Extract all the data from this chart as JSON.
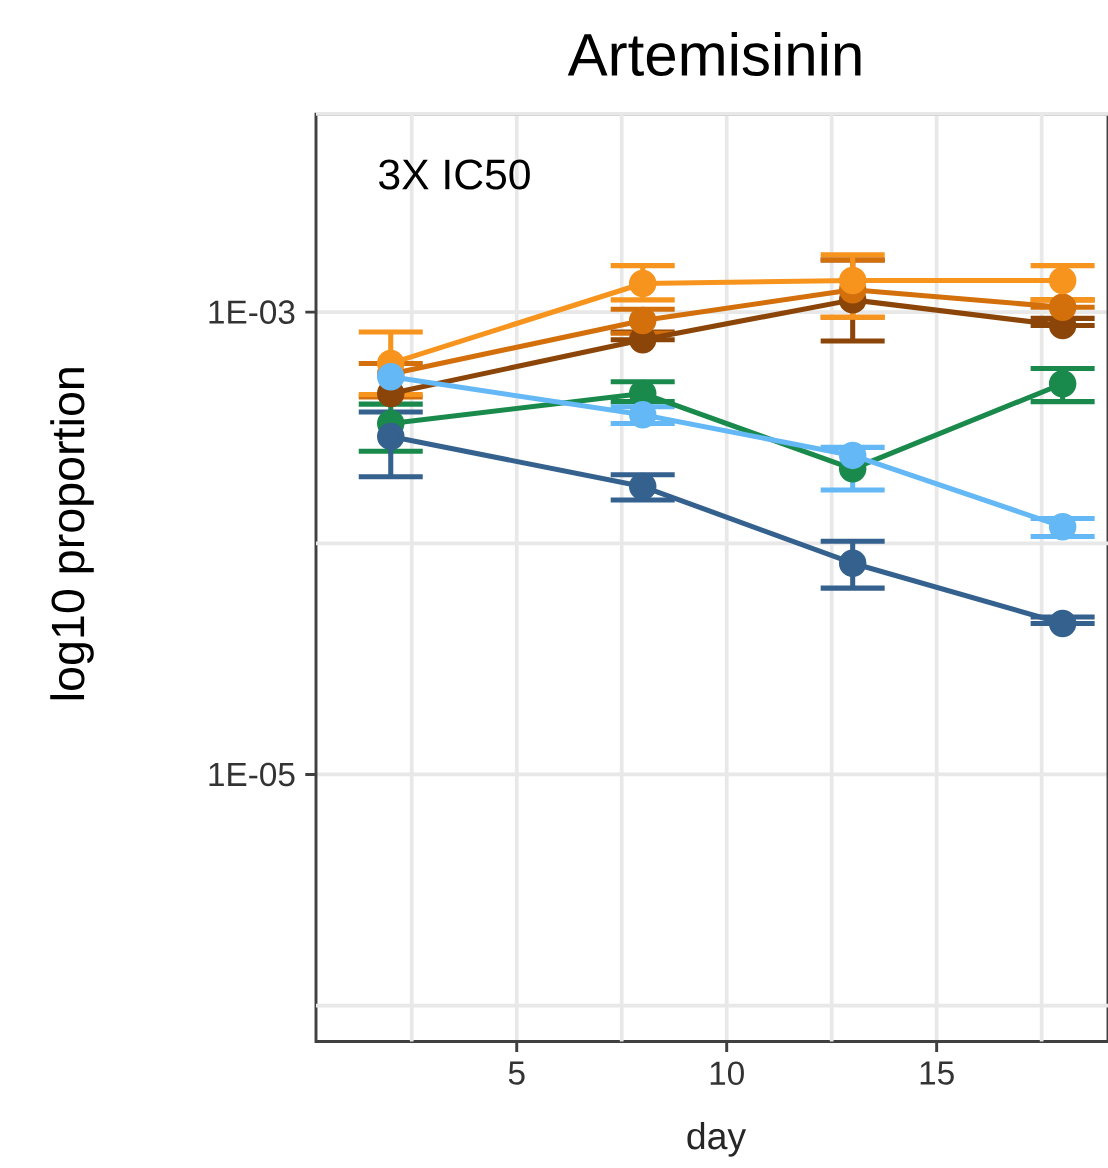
{
  "chart_data": {
    "type": "line",
    "title": "Artemisinin",
    "xlabel": "day",
    "ylabel": "log10 proportion",
    "annotations": [
      "3X IC50"
    ],
    "x": [
      2,
      8,
      13,
      18
    ],
    "series": [
      {
        "color": "#8c4508",
        "values": [
          0.000445,
          0.00076,
          0.00113,
          0.000875
        ],
        "errors": [
          null,
          [
            0.00076,
            0.00082
          ],
          [
            0.00075,
            0.00168
          ],
          [
            0.000875,
            0.00094
          ]
        ]
      },
      {
        "color": "#d3700c",
        "values": [
          0.00054,
          0.00092,
          0.00125,
          0.00105
        ],
        "errors": [
          [
            0.00043,
            0.0006
          ],
          [
            0.00081,
            0.00103
          ],
          [
            0.00095,
            0.00168
          ],
          [
            0.00105,
            0.00113
          ]
        ]
      },
      {
        "color": "#f7941d",
        "values": [
          0.0006,
          0.00133,
          0.00137,
          0.00137
        ],
        "errors": [
          [
            0.00044,
            0.00082
          ],
          [
            0.00113,
            0.00159
          ],
          [
            0.00095,
            0.00177
          ],
          [
            0.00113,
            0.00159
          ]
        ]
      },
      {
        "color": "#1a8a4c",
        "values": [
          0.00033,
          0.000445,
          0.00021,
          0.00049
        ],
        "errors": [
          [
            0.00025,
            0.0004
          ],
          [
            0.00041,
            0.0005
          ],
          null,
          [
            0.00041,
            0.00057
          ]
        ]
      },
      {
        "color": "#34618e",
        "values": [
          0.00029,
          0.000176,
          8.2e-05,
          4.5e-05
        ],
        "errors": [
          [
            0.000194,
            0.00037
          ],
          [
            0.000154,
            0.000198
          ],
          [
            6.4e-05,
            0.000102
          ],
          [
            4.5e-05,
            4.8e-05
          ]
        ]
      },
      {
        "color": "#63b8f5",
        "values": [
          0.000525,
          0.00036,
          0.00024,
          0.000118
        ],
        "errors": [
          null,
          [
            0.00033,
            0.00039
          ],
          [
            0.00017,
            0.00026
          ],
          [
            0.000107,
            0.000128
          ]
        ]
      }
    ],
    "xlim": [
      0.22,
      19.08
    ],
    "ylim": [
      7e-07,
      0.0072
    ],
    "xticks": [
      {
        "value": 2.5,
        "label": null
      },
      5,
      {
        "value": 7.5,
        "label": null
      },
      10,
      {
        "value": 12.5,
        "label": null
      },
      15,
      {
        "value": 17.5,
        "label": null
      }
    ],
    "yticks": [
      {
        "value": 0.0072,
        "label": null
      },
      {
        "value": 0.001,
        "label": "1E-03"
      },
      {
        "value": 0.0001,
        "label": null
      },
      {
        "value": 1e-05,
        "label": "1E-05"
      },
      {
        "value": 1e-06,
        "label": null
      }
    ],
    "log": "y",
    "grid": true,
    "marker": "circle",
    "line_style": "solid"
  }
}
